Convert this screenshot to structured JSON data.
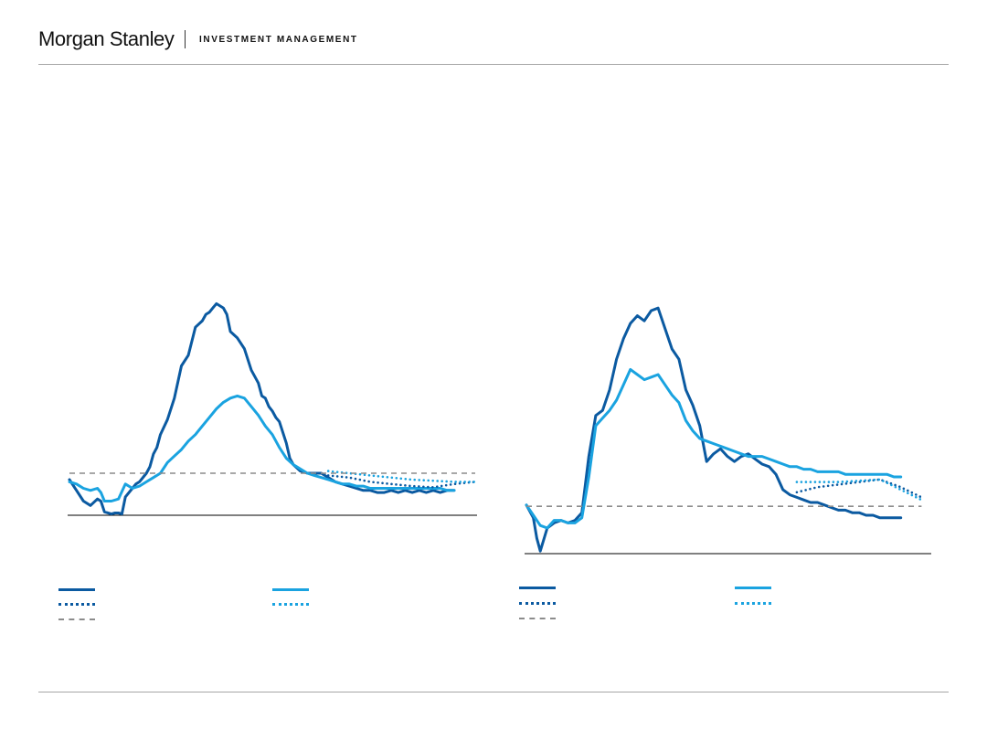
{
  "header": {
    "brand": "Morgan Stanley",
    "division": "INVESTMENT MANAGEMENT"
  },
  "colors": {
    "dark_blue": "#0b5aa1",
    "light_blue": "#1aa3e0",
    "reference_gray": "#8c8c8c",
    "axis": "#000000"
  },
  "chart_data": [
    {
      "type": "line",
      "ylim": [
        -1,
        9
      ],
      "x_range": [
        0,
        116
      ],
      "grid": false,
      "legend_position": "bottom",
      "series": [
        {
          "color": "#0b5aa1",
          "style": "solid",
          "x": [
            0,
            2,
            4,
            6,
            8,
            9,
            10,
            12,
            13,
            14,
            15,
            16,
            18,
            19,
            20,
            22,
            23,
            24,
            25,
            26,
            28,
            30,
            32,
            34,
            36,
            38,
            39,
            40,
            41,
            42,
            44,
            45,
            46,
            48,
            50,
            52,
            53,
            54,
            55,
            56,
            57,
            58,
            59,
            60,
            62,
            63,
            64,
            66,
            68,
            70,
            72,
            73,
            74,
            76,
            78,
            80,
            82,
            84,
            86,
            88,
            90,
            92,
            94,
            96,
            98,
            100,
            102,
            104,
            106,
            108,
            110
          ],
          "y": [
            0.7,
            0.2,
            -0.3,
            -0.5,
            -0.2,
            -0.3,
            -0.8,
            -0.9,
            -0.85,
            -0.85,
            -0.9,
            -0.1,
            0.3,
            0.5,
            0.6,
            1.0,
            1.3,
            1.9,
            2.2,
            2.8,
            3.5,
            4.5,
            6.0,
            6.5,
            7.8,
            8.1,
            8.4,
            8.5,
            8.7,
            8.9,
            8.7,
            8.4,
            7.6,
            7.3,
            6.8,
            5.8,
            5.5,
            5.2,
            4.6,
            4.5,
            4.1,
            3.9,
            3.6,
            3.4,
            2.4,
            1.7,
            1.4,
            1.1,
            1.0,
            1.0,
            1.0,
            0.9,
            0.8,
            0.6,
            0.5,
            0.4,
            0.3,
            0.2,
            0.2,
            0.1,
            0.1,
            0.2,
            0.1,
            0.2,
            0.1,
            0.2,
            0.1,
            0.2,
            0.1,
            0.2,
            0.2
          ]
        },
        {
          "color": "#1aa3e0",
          "style": "solid",
          "x": [
            0,
            2,
            4,
            6,
            8,
            9,
            10,
            12,
            14,
            16,
            18,
            20,
            22,
            24,
            26,
            28,
            30,
            32,
            34,
            36,
            38,
            40,
            42,
            44,
            46,
            48,
            50,
            52,
            54,
            56,
            58,
            60,
            62,
            64,
            66,
            68,
            70,
            72,
            74,
            76,
            78,
            80,
            82,
            84,
            86,
            88,
            90,
            92,
            94,
            96,
            98,
            100,
            102,
            104,
            106,
            108,
            110
          ],
          "y": [
            0.6,
            0.5,
            0.3,
            0.2,
            0.3,
            0.1,
            -0.3,
            -0.3,
            -0.2,
            0.5,
            0.3,
            0.4,
            0.6,
            0.8,
            1.0,
            1.5,
            1.8,
            2.1,
            2.5,
            2.8,
            3.2,
            3.6,
            4.0,
            4.3,
            4.5,
            4.6,
            4.5,
            4.1,
            3.7,
            3.2,
            2.8,
            2.2,
            1.7,
            1.4,
            1.2,
            1.0,
            0.9,
            0.8,
            0.7,
            0.6,
            0.5,
            0.5,
            0.4,
            0.4,
            0.3,
            0.3,
            0.3,
            0.3,
            0.3,
            0.3,
            0.3,
            0.3,
            0.3,
            0.3,
            0.3,
            0.2,
            0.2
          ]
        },
        {
          "color": "#0b5aa1",
          "style": "dotted",
          "x": [
            74,
            80,
            86,
            92,
            98,
            104,
            110,
            116
          ],
          "y": [
            0.9,
            0.8,
            0.6,
            0.5,
            0.4,
            0.35,
            0.5,
            0.6
          ]
        },
        {
          "color": "#1aa3e0",
          "style": "dotted",
          "x": [
            74,
            80,
            86,
            92,
            98,
            104,
            110,
            116
          ],
          "y": [
            1.1,
            1.0,
            0.9,
            0.8,
            0.7,
            0.65,
            0.6,
            0.6
          ]
        },
        {
          "color": "#8c8c8c",
          "style": "dashed",
          "x": [
            0,
            116
          ],
          "y": [
            1,
            1
          ]
        }
      ]
    },
    {
      "type": "line",
      "ylim": [
        -1,
        9
      ],
      "x_range": [
        0,
        116
      ],
      "grid": false,
      "legend_position": "bottom",
      "series": [
        {
          "color": "#0b5aa1",
          "style": "solid",
          "x": [
            0,
            2,
            3,
            4,
            6,
            8,
            10,
            12,
            14,
            16,
            18,
            20,
            22,
            24,
            26,
            28,
            30,
            32,
            34,
            36,
            38,
            40,
            42,
            44,
            46,
            48,
            50,
            52,
            54,
            56,
            58,
            60,
            62,
            64,
            66,
            68,
            70,
            72,
            74,
            76,
            78,
            80,
            82,
            84,
            86,
            88,
            90,
            92,
            94,
            96,
            98,
            100,
            102,
            104,
            106,
            108
          ],
          "y": [
            0.9,
            0.4,
            -0.4,
            -0.9,
            0.0,
            0.2,
            0.3,
            0.2,
            0.3,
            0.6,
            2.8,
            4.4,
            4.6,
            5.4,
            6.6,
            7.4,
            8.0,
            8.3,
            8.1,
            8.5,
            8.6,
            7.8,
            7.0,
            6.6,
            5.4,
            4.8,
            4.0,
            2.6,
            2.9,
            3.1,
            2.8,
            2.6,
            2.8,
            2.9,
            2.7,
            2.5,
            2.4,
            2.1,
            1.5,
            1.3,
            1.2,
            1.1,
            1.0,
            1.0,
            0.9,
            0.8,
            0.7,
            0.7,
            0.6,
            0.6,
            0.5,
            0.5,
            0.4,
            0.4,
            0.4,
            0.4
          ]
        },
        {
          "color": "#1aa3e0",
          "style": "solid",
          "x": [
            0,
            2,
            4,
            6,
            8,
            10,
            12,
            14,
            16,
            18,
            20,
            22,
            24,
            26,
            28,
            30,
            32,
            34,
            36,
            38,
            40,
            42,
            44,
            46,
            48,
            50,
            52,
            54,
            56,
            58,
            60,
            62,
            64,
            66,
            68,
            70,
            72,
            74,
            76,
            78,
            80,
            82,
            84,
            86,
            88,
            90,
            92,
            94,
            96,
            98,
            100,
            102,
            104,
            106,
            108
          ],
          "y": [
            0.9,
            0.5,
            0.1,
            0.0,
            0.3,
            0.3,
            0.2,
            0.2,
            0.4,
            2.0,
            4.0,
            4.3,
            4.6,
            5.0,
            5.6,
            6.2,
            6.0,
            5.8,
            5.9,
            6.0,
            5.6,
            5.2,
            4.9,
            4.2,
            3.8,
            3.5,
            3.4,
            3.3,
            3.2,
            3.1,
            3.0,
            2.9,
            2.8,
            2.8,
            2.8,
            2.7,
            2.6,
            2.5,
            2.4,
            2.4,
            2.3,
            2.3,
            2.2,
            2.2,
            2.2,
            2.2,
            2.1,
            2.1,
            2.1,
            2.1,
            2.1,
            2.1,
            2.1,
            2.0,
            2.0
          ]
        },
        {
          "color": "#0b5aa1",
          "style": "dotted",
          "x": [
            78,
            84,
            90,
            96,
            102,
            108,
            114
          ],
          "y": [
            1.4,
            1.6,
            1.7,
            1.8,
            1.9,
            1.6,
            1.2
          ]
        },
        {
          "color": "#1aa3e0",
          "style": "dotted",
          "x": [
            78,
            84,
            90,
            96,
            102,
            108,
            114
          ],
          "y": [
            1.8,
            1.8,
            1.8,
            1.85,
            1.9,
            1.5,
            1.1
          ]
        },
        {
          "color": "#8c8c8c",
          "style": "dashed",
          "x": [
            0,
            114
          ],
          "y": [
            0.85,
            0.85
          ]
        }
      ]
    }
  ]
}
